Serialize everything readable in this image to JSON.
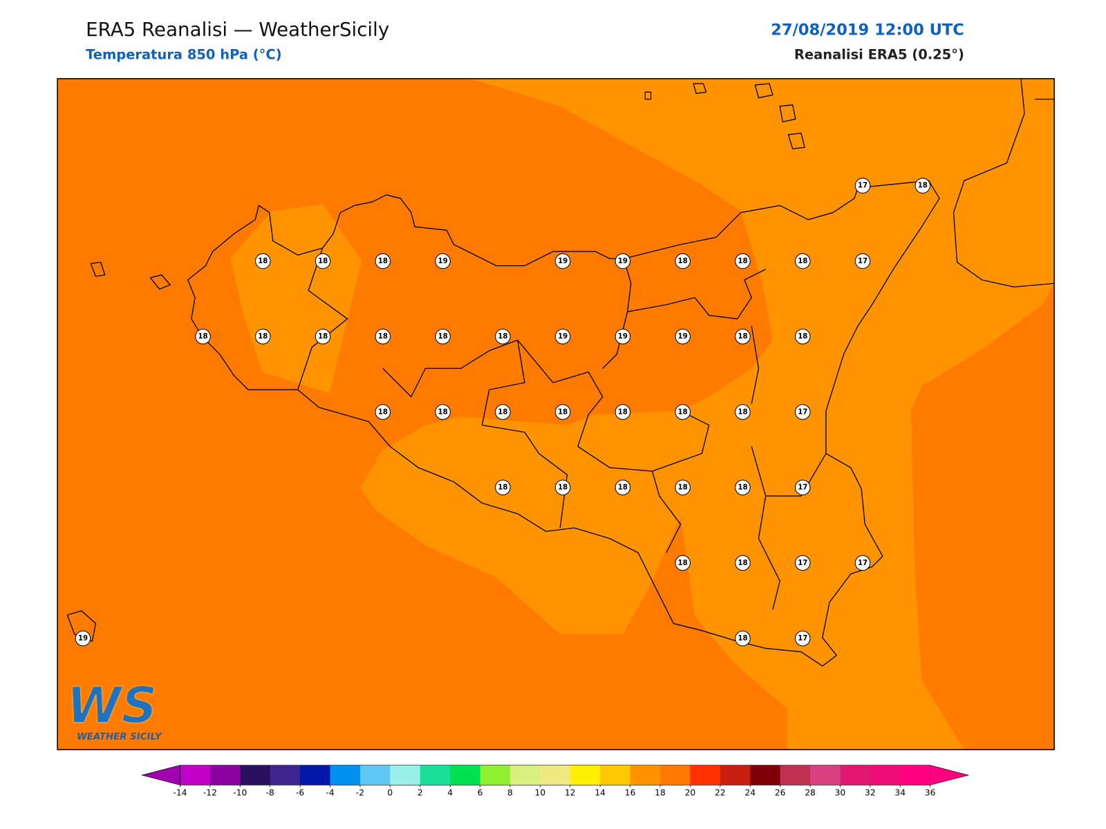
{
  "header": {
    "title": "ERA5 Reanalisi — WeatherSicily",
    "subtitle": "Temperatura 850 hPa (°C)",
    "date": "27/08/2019 12:00 UTC",
    "source": "Reanalisi ERA5 (0.25°)"
  },
  "stations": {
    "rows": [
      [
        null,
        null,
        null,
        null,
        null,
        null,
        null,
        null,
        null,
        null,
        null,
        null,
        null,
        17,
        18
      ],
      [
        null,
        null,
        null,
        18,
        18,
        18,
        19,
        null,
        19,
        19,
        18,
        18,
        18,
        17,
        null
      ],
      [
        null,
        null,
        18,
        18,
        18,
        18,
        18,
        18,
        19,
        19,
        19,
        18,
        18,
        null,
        null
      ],
      [
        null,
        null,
        null,
        null,
        null,
        18,
        18,
        18,
        18,
        18,
        18,
        18,
        17,
        null,
        null
      ],
      [
        null,
        null,
        null,
        null,
        null,
        null,
        null,
        18,
        18,
        18,
        18,
        18,
        17,
        null,
        null
      ],
      [
        null,
        null,
        null,
        null,
        null,
        null,
        null,
        null,
        null,
        null,
        18,
        18,
        17,
        17,
        null
      ],
      [
        19,
        null,
        null,
        null,
        null,
        null,
        null,
        null,
        null,
        null,
        null,
        18,
        17,
        null,
        null
      ]
    ]
  },
  "colorbar": {
    "ticks": [
      -14,
      -12,
      -10,
      -8,
      -6,
      -4,
      -2,
      0,
      2,
      4,
      6,
      8,
      10,
      12,
      14,
      16,
      18,
      20,
      22,
      24,
      26,
      28,
      30,
      32,
      34,
      36
    ],
    "colors": [
      "#c300c8",
      "#8a00a0",
      "#2a0f60",
      "#3d2590",
      "#0018a8",
      "#0090f0",
      "#60c8f5",
      "#98f0e8",
      "#18e098",
      "#00e050",
      "#90f030",
      "#d8f080",
      "#f0e880",
      "#fff000",
      "#ffc800",
      "#ff9400",
      "#ff7800",
      "#ff3000",
      "#c81e10",
      "#800008",
      "#c03050",
      "#d84080",
      "#e01870",
      "#f00c78",
      "#ff0080"
    ],
    "under_color": "#a000b0",
    "over_color": "#ff0080"
  },
  "logo": {
    "mark": "WS",
    "caption": "WEATHER SICILY"
  }
}
